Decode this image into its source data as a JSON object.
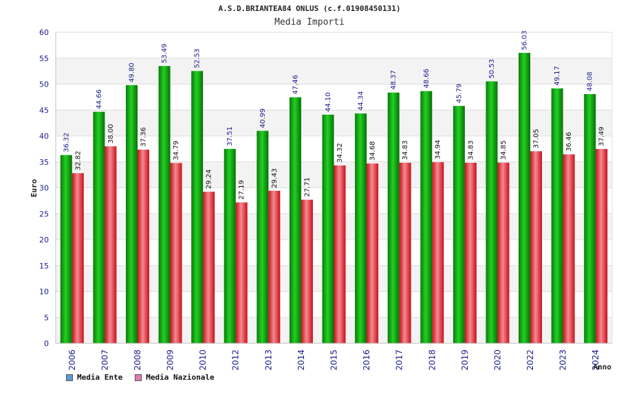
{
  "colors": {
    "series_a_legend": "#5b9bd5",
    "series_b_legend": "#e07ab0",
    "series_a_bar": "#11b311",
    "series_b_bar": "#e8323c"
  },
  "chart_data": {
    "type": "bar",
    "title": "A.S.D.BRIANTEA84 ONLUS (c.f.01908450131)",
    "subtitle": "Media Importi",
    "xlabel": "Anno",
    "ylabel": "Euro",
    "ylim": [
      0,
      60
    ],
    "yticks": [
      "0",
      "5",
      "10",
      "15",
      "20",
      "25",
      "30",
      "35",
      "40",
      "45",
      "50",
      "55",
      "60"
    ],
    "grid": true,
    "legend_position": "bottom-left",
    "categories": [
      "2006",
      "2007",
      "2008",
      "2009",
      "2010",
      "2012",
      "2013",
      "2014",
      "2015",
      "2016",
      "2017",
      "2018",
      "2019",
      "2020",
      "2022",
      "2023",
      "2024"
    ],
    "series": [
      {
        "name": "Media Ente",
        "values": [
          36.32,
          44.66,
          49.8,
          53.49,
          52.53,
          37.51,
          40.99,
          47.46,
          44.1,
          44.34,
          48.37,
          48.66,
          45.79,
          50.53,
          56.03,
          49.17,
          48.08
        ],
        "labels": [
          "36.32",
          "44.66",
          "49.80",
          "53.49",
          "52.53",
          "37.51",
          "40.99",
          "47.46",
          "44.10",
          "44.34",
          "48.37",
          "48.66",
          "45.79",
          "50.53",
          "56.03",
          "49.17",
          "48.08"
        ]
      },
      {
        "name": "Media Nazionale",
        "values": [
          32.82,
          38.0,
          37.36,
          34.79,
          29.24,
          27.19,
          29.43,
          27.71,
          34.32,
          34.68,
          34.83,
          34.94,
          34.83,
          34.85,
          37.05,
          36.46,
          37.49
        ],
        "labels": [
          "32.82",
          "38.00",
          "37.36",
          "34.79",
          "29.24",
          "27.19",
          "29.43",
          "27.71",
          "34.32",
          "34.68",
          "34.83",
          "34.94",
          "34.83",
          "34.85",
          "37.05",
          "36.46",
          "37.49"
        ]
      }
    ]
  }
}
